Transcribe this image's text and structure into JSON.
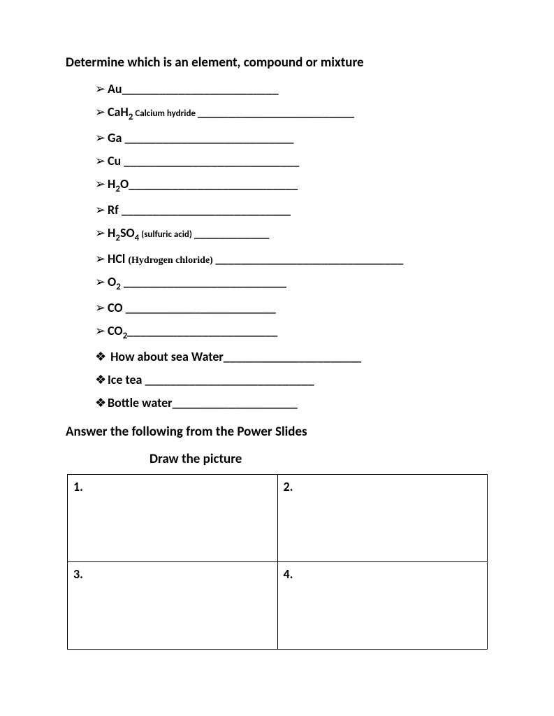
{
  "heading": "Determine which is an element, compound or mixture",
  "items": [
    {
      "bullet": "➢",
      "formula_pre": "Au",
      "sub": "",
      "formula_post": "",
      "note": "",
      "note_class": "",
      "blank": "_________________________"
    },
    {
      "bullet": "➢",
      "formula_pre": "CaH",
      "sub": "2",
      "formula_post": "",
      "note": " Calcium hydride ",
      "note_class": "note",
      "blank": "_________________________"
    },
    {
      "bullet": "➢",
      "formula_pre": "Ga ",
      "sub": "",
      "formula_post": "",
      "note": "",
      "note_class": "",
      "blank": "___________________________"
    },
    {
      "bullet": "➢",
      "formula_pre": "Cu ",
      "sub": "",
      "formula_post": "",
      "note": "",
      "note_class": "",
      "blank": "____________________________"
    },
    {
      "bullet": "➢",
      "formula_pre": "H",
      "sub": "2",
      "formula_post": "O",
      "note": "",
      "note_class": "",
      "blank": "___________________________"
    },
    {
      "bullet": "➢",
      "formula_pre": "Rf ",
      "sub": "",
      "formula_post": "",
      "note": "",
      "note_class": "",
      "blank": "___________________________"
    },
    {
      "bullet": "➢",
      "formula_pre": "H",
      "sub": "2",
      "formula_post": "SO",
      "sub2": "4",
      "note": " (sulfuric acid) ",
      "note_class": "note",
      "blank": "____________"
    },
    {
      "bullet": "➢",
      "formula_pre": "HCl ",
      "sub": "",
      "formula_post": "",
      "note": "(Hydrogen chloride) ",
      "note_class": "note-serif",
      "blank": "______________________________"
    },
    {
      "bullet": "➢",
      "formula_pre": "O",
      "sub": "2",
      "formula_post": " ",
      "note": "",
      "note_class": "",
      "blank": "__________________________"
    },
    {
      "bullet": "➢",
      "formula_pre": "CO ",
      "sub": "",
      "formula_post": "",
      "note": "",
      "note_class": "",
      "blank": "________________________"
    },
    {
      "bullet": "➢",
      "formula_pre": "CO",
      "sub": "2",
      "formula_post": "",
      "note": "",
      "note_class": "",
      "blank": "________________________"
    },
    {
      "bullet": "❖",
      "formula_pre": " How about sea Water",
      "sub": "",
      "formula_post": "",
      "note": "",
      "note_class": "",
      "blank": "______________________"
    },
    {
      "bullet": "❖",
      "formula_pre": "Ice tea ",
      "sub": "",
      "formula_post": "",
      "note": "",
      "note_class": "",
      "blank": "___________________________"
    },
    {
      "bullet": "❖",
      "formula_pre": "Bottle water",
      "sub": "",
      "formula_post": "",
      "note": "",
      "note_class": "",
      "blank": "____________________"
    }
  ],
  "section2": "Answer the following from the Power Slides",
  "draw_label": "Draw the picture",
  "cells": [
    "1.",
    "2.",
    "3.",
    "4."
  ]
}
